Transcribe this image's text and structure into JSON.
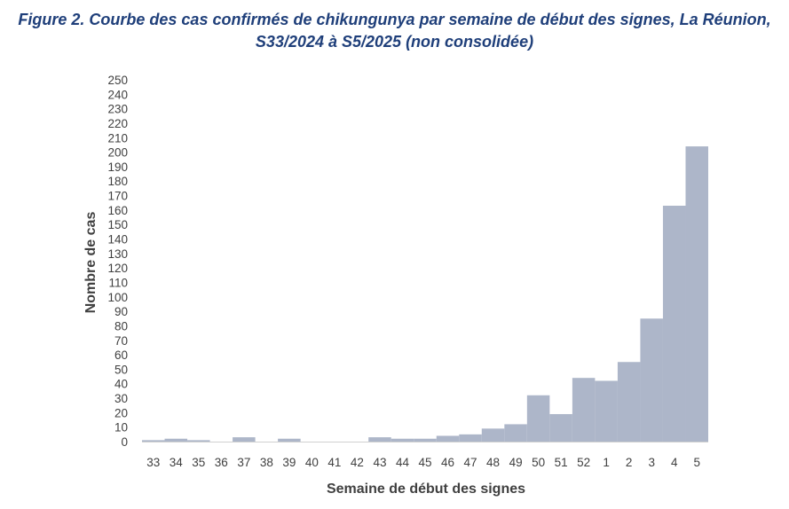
{
  "chart_data": {
    "type": "bar",
    "title_line1": "Figure 2. Courbe des cas confirmés de chikungunya par semaine de début des signes, La Réunion,",
    "title_line2": "S33/2024 à S5/2025 (non consolidée)",
    "xlabel": "Semaine de début des signes",
    "ylabel": "Nombre de cas",
    "ylim": [
      0,
      250
    ],
    "yticks": [
      0,
      10,
      20,
      30,
      40,
      50,
      60,
      70,
      80,
      90,
      100,
      110,
      120,
      130,
      140,
      150,
      160,
      170,
      180,
      190,
      200,
      210,
      220,
      230,
      240,
      250
    ],
    "categories": [
      "33",
      "34",
      "35",
      "36",
      "37",
      "38",
      "39",
      "40",
      "41",
      "42",
      "43",
      "44",
      "45",
      "46",
      "47",
      "48",
      "49",
      "50",
      "51",
      "52",
      "1",
      "2",
      "3",
      "4",
      "5"
    ],
    "values": [
      1,
      2,
      1,
      0,
      3,
      0,
      2,
      0,
      0,
      0,
      3,
      2,
      2,
      4,
      5,
      9,
      12,
      32,
      19,
      44,
      42,
      55,
      85,
      163,
      204
    ],
    "bar_color": "#adb6c9",
    "grid": false,
    "legend": "none"
  }
}
